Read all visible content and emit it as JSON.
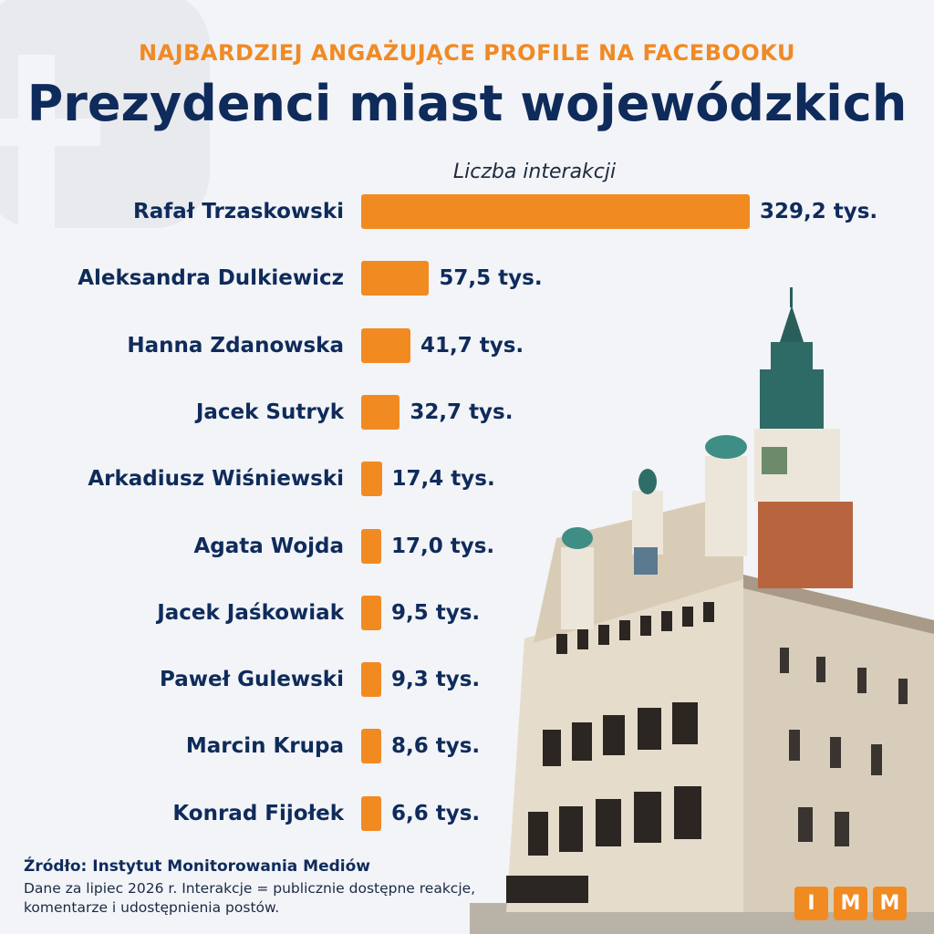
{
  "header": {
    "kicker": "NAJBARDZIEJ ANGAŻUJĄCE PROFILE NA FACEBOOKU",
    "title": "Prezydenci miast wojewódzkich"
  },
  "chart_data": {
    "type": "bar",
    "orientation": "horizontal",
    "title": "Prezydenci miast wojewódzkich",
    "xlabel": "Liczba interakcji",
    "ylabel": "",
    "categories": [
      "Rafał Trzaskowski",
      "Aleksandra Dulkiewicz",
      "Hanna Zdanowska",
      "Jacek Sutryk",
      "Arkadiusz Wiśniewski",
      "Agata Wojda",
      "Jacek Jaśkowiak",
      "Paweł Gulewski",
      "Marcin Krupa",
      "Konrad Fijołek"
    ],
    "values": [
      329.2,
      57.5,
      41.7,
      32.7,
      17.4,
      17.0,
      9.5,
      9.3,
      8.6,
      6.6
    ],
    "labels": [
      "329,2 tys.",
      "57,5 tys.",
      "41,7 tys.",
      "32,7 tys.",
      "17,4 tys.",
      "17,0 tys.",
      "9,5 tys.",
      "9,3 tys.",
      "8,6 tys.",
      "6,6 tys."
    ],
    "xlim": [
      0,
      329.2
    ],
    "grid": false,
    "bar_color": "#f28a22"
  },
  "source": {
    "line1": "Źródło: Instytut Monitorowania Mediów",
    "line2": "Dane za lipiec 2026 r. Interakcje = publicznie dostępne reakcje, komentarze i udostępnienia postów."
  },
  "logo": {
    "letters": [
      "I",
      "M",
      "M"
    ],
    "color": "#f28a22"
  },
  "colors": {
    "accent": "#f08a24",
    "navy": "#0f2b5b",
    "background": "#f2f4f7"
  }
}
